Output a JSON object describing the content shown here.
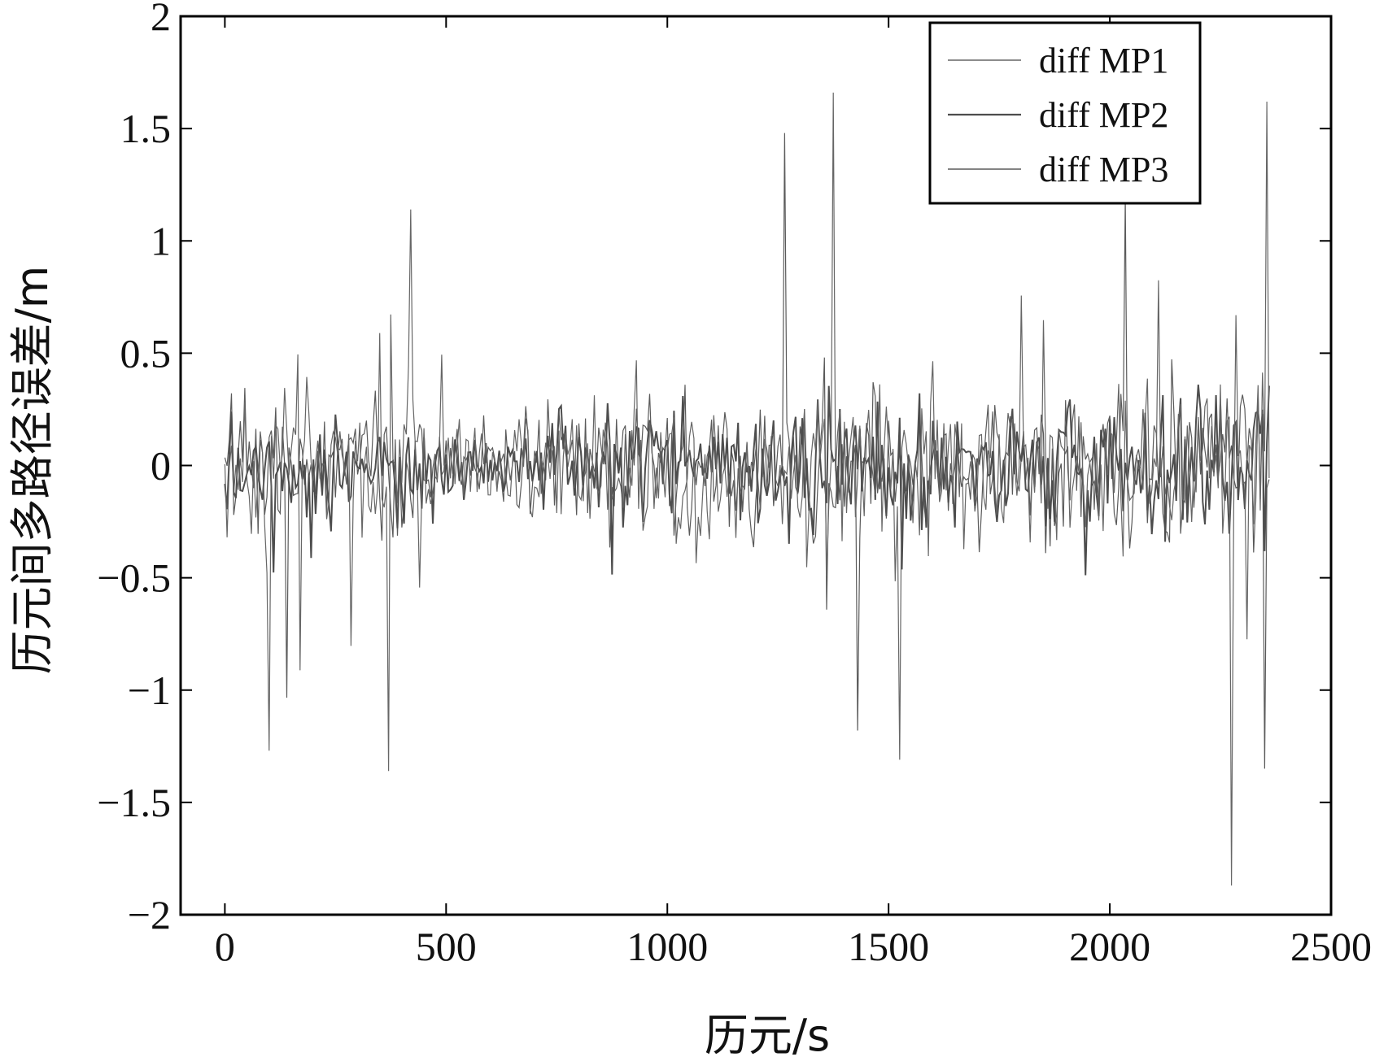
{
  "chart_data": {
    "type": "line",
    "title": "",
    "xlabel": "历元/s",
    "ylabel": "历元间多路径误差/m",
    "xlim": [
      -100,
      2500
    ],
    "ylim": [
      -2,
      2
    ],
    "x_ticks": [
      0,
      500,
      1000,
      1500,
      2000,
      2500
    ],
    "x_tick_labels": [
      "0",
      "500",
      "1000",
      "1500",
      "2000",
      "2500"
    ],
    "y_ticks": [
      -2,
      -1.5,
      -1,
      -0.5,
      0,
      0.5,
      1,
      1.5,
      2
    ],
    "y_tick_labels": [
      "−2",
      "−1.5",
      "−1",
      "−0.5",
      "0",
      "0.5",
      "1",
      "1.5",
      "2"
    ],
    "grid": false,
    "legend_position": "top-right",
    "series": [
      {
        "name": "diff MP1",
        "color": "#666666",
        "stroke_width": 1.2,
        "x_range": [
          0,
          2360
        ],
        "sample_step": 5,
        "noise_profile": {
          "x": [
            0,
            150,
            300,
            370,
            430,
            470,
            650,
            700,
            900,
            1000,
            1500,
            2000,
            2270,
            2360
          ],
          "amplitude": [
            0.26,
            0.26,
            0.2,
            0.34,
            0.36,
            0.14,
            0.14,
            0.22,
            0.24,
            0.24,
            0.26,
            0.26,
            0.3,
            0.34
          ]
        },
        "peaks": [
          [
            100,
            -1.27
          ],
          [
            370,
            -1.36
          ],
          [
            420,
            1.14
          ],
          [
            1375,
            1.66
          ],
          [
            2275,
            -1.87
          ],
          [
            2355,
            1.62
          ],
          [
            1525,
            -1.31
          ]
        ]
      },
      {
        "name": "diff MP2",
        "color": "#4d4d4d",
        "stroke_width": 2,
        "x_range": [
          0,
          2360
        ],
        "sample_step": 5,
        "noise_profile": {
          "x": [
            0,
            150,
            300,
            370,
            430,
            470,
            650,
            700,
            900,
            1000,
            1500,
            2000,
            2270,
            2360
          ],
          "amplitude": [
            0.16,
            0.16,
            0.12,
            0.2,
            0.22,
            0.1,
            0.1,
            0.16,
            0.18,
            0.18,
            0.19,
            0.19,
            0.22,
            0.22
          ]
        },
        "peaks": []
      },
      {
        "name": "diff MP3",
        "color": "#5a5a5a",
        "stroke_width": 1.2,
        "x_range": [
          0,
          2360
        ],
        "sample_step": 5,
        "noise_profile": {
          "x": [
            0,
            150,
            300,
            370,
            430,
            470,
            650,
            700,
            900,
            1000,
            1500,
            2000,
            2270,
            2360
          ],
          "amplitude": [
            0.22,
            0.22,
            0.17,
            0.3,
            0.32,
            0.12,
            0.12,
            0.2,
            0.22,
            0.22,
            0.24,
            0.24,
            0.28,
            0.3
          ]
        },
        "peaks": [
          [
            1265,
            1.48
          ],
          [
            1430,
            -1.18
          ],
          [
            2035,
            1.2
          ],
          [
            2350,
            -1.35
          ]
        ]
      }
    ]
  }
}
